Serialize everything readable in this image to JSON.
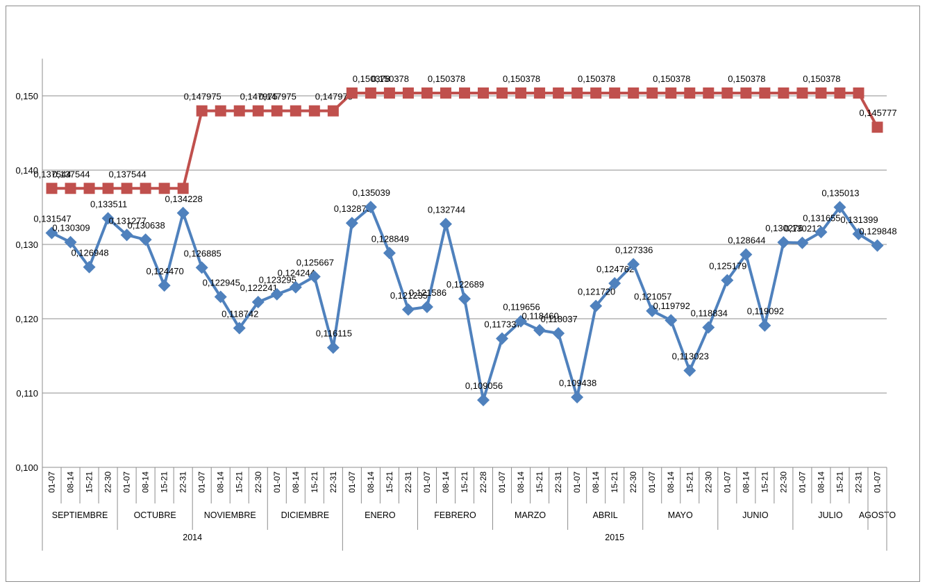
{
  "chart_data": {
    "type": "line",
    "ylim": [
      0.1,
      0.155
    ],
    "y_ticks": [
      "0,100",
      "0,110",
      "0,120",
      "0,130",
      "0,140",
      "0,150"
    ],
    "y_tick_values": [
      0.1,
      0.11,
      0.12,
      0.13,
      0.14,
      0.15
    ],
    "grid": true,
    "legend": "none",
    "categories": [
      "01-07",
      "08-14",
      "15-21",
      "22-30",
      "01-07",
      "08-14",
      "15-21",
      "22-31",
      "01-07",
      "08-14",
      "15-21",
      "22-30",
      "01-07",
      "08-14",
      "15-21",
      "22-31",
      "01-07",
      "08-14",
      "15-21",
      "22-31",
      "01-07",
      "08-14",
      "15-21",
      "22-28",
      "01-07",
      "08-14",
      "15-21",
      "22-31",
      "01-07",
      "08-14",
      "15-21",
      "22-30",
      "01-07",
      "08-14",
      "15-21",
      "22-30",
      "01-07",
      "08-14",
      "15-21",
      "22-30",
      "01-07",
      "08-14",
      "15-21",
      "22-31",
      "01-07"
    ],
    "months": [
      {
        "label": "SEPTIEMBRE",
        "start": 0,
        "count": 4
      },
      {
        "label": "OCTUBRE",
        "start": 4,
        "count": 4
      },
      {
        "label": "NOVIEMBRE",
        "start": 8,
        "count": 4
      },
      {
        "label": "DICIEMBRE",
        "start": 12,
        "count": 4
      },
      {
        "label": "ENERO",
        "start": 16,
        "count": 4
      },
      {
        "label": "FEBRERO",
        "start": 20,
        "count": 4
      },
      {
        "label": "MARZO",
        "start": 24,
        "count": 4
      },
      {
        "label": "ABRIL",
        "start": 28,
        "count": 4
      },
      {
        "label": "MAYO",
        "start": 32,
        "count": 4
      },
      {
        "label": "JUNIO",
        "start": 36,
        "count": 4
      },
      {
        "label": "JULIO",
        "start": 40,
        "count": 4
      },
      {
        "label": "AGOSTO",
        "start": 44,
        "count": 1
      }
    ],
    "years": [
      {
        "label": "2014",
        "start": 0,
        "count": 16
      },
      {
        "label": "2015",
        "start": 16,
        "count": 29
      }
    ],
    "series": [
      {
        "color": "#4f81bd",
        "marker": "diamond",
        "values": [
          0.131547,
          0.130309,
          0.126948,
          0.133511,
          0.131277,
          0.130638,
          0.12447,
          0.134228,
          0.126885,
          0.122945,
          0.118742,
          0.122241,
          0.123295,
          0.124244,
          0.125667,
          0.116115,
          0.132875,
          0.135039,
          0.128849,
          0.121235,
          0.121586,
          0.132744,
          0.122689,
          0.109056,
          0.117337,
          0.119656,
          0.11846,
          0.118037,
          0.109438,
          0.12172,
          0.124762,
          0.127336,
          0.121057,
          0.119792,
          0.113023,
          0.118834,
          0.125179,
          0.128644,
          0.119092,
          0.130276,
          0.130212,
          0.131655,
          0.135013,
          0.131399,
          0.129848
        ],
        "labels": [
          "0,131547",
          "0,130309",
          "0,126948",
          "0,133511",
          "0,131277",
          "0,130638",
          "0,124470",
          "0,134228",
          "0,126885",
          "0,122945",
          "0,118742",
          "0,122241",
          "0,123295",
          "0,124244",
          "0,125667",
          "0,116115",
          "0,132875",
          "0,135039",
          "0,128849",
          "0,121235",
          "0,121586",
          "0,132744",
          "0,122689",
          "0,109056",
          "0,117337",
          "0,119656",
          "0,118460",
          "0,118037",
          "0,109438",
          "0,121720",
          "0,124762",
          "0,127336",
          "0,121057",
          "0,119792",
          "0,113023",
          "0,118834",
          "0,125179",
          "0,128644",
          "0,119092",
          "0,130276",
          "0,130212",
          "0,131655",
          "0,135013",
          "0,131399",
          "0,129848"
        ]
      },
      {
        "color": "#c0504d",
        "marker": "square",
        "values": [
          0.137544,
          0.137544,
          0.137544,
          0.137544,
          0.137544,
          0.137544,
          0.137544,
          0.137544,
          0.147975,
          0.147975,
          0.147975,
          0.147975,
          0.147975,
          0.147975,
          0.147975,
          0.147975,
          0.150378,
          0.150378,
          0.150378,
          0.150378,
          0.150378,
          0.150378,
          0.150378,
          0.150378,
          0.150378,
          0.150378,
          0.150378,
          0.150378,
          0.150378,
          0.150378,
          0.150378,
          0.150378,
          0.150378,
          0.150378,
          0.150378,
          0.150378,
          0.150378,
          0.150378,
          0.150378,
          0.150378,
          0.150378,
          0.150378,
          0.150378,
          0.150378,
          0.145777
        ],
        "labels": [
          "0,137544",
          "0,137544",
          "",
          "",
          "0,137544",
          "",
          "",
          "",
          "0,147975",
          "",
          "",
          "0,147975",
          "0,147975",
          "",
          "",
          "0,147975",
          "",
          "0,150378",
          "0,150378",
          "",
          "",
          "0,150378",
          "",
          "",
          "",
          "0,150378",
          "",
          "",
          "",
          "0,150378",
          "",
          "",
          "",
          "0,150378",
          "",
          "",
          "",
          "0,150378",
          "",
          "",
          "",
          "0,150378",
          "",
          "",
          "0,145777"
        ]
      }
    ]
  }
}
